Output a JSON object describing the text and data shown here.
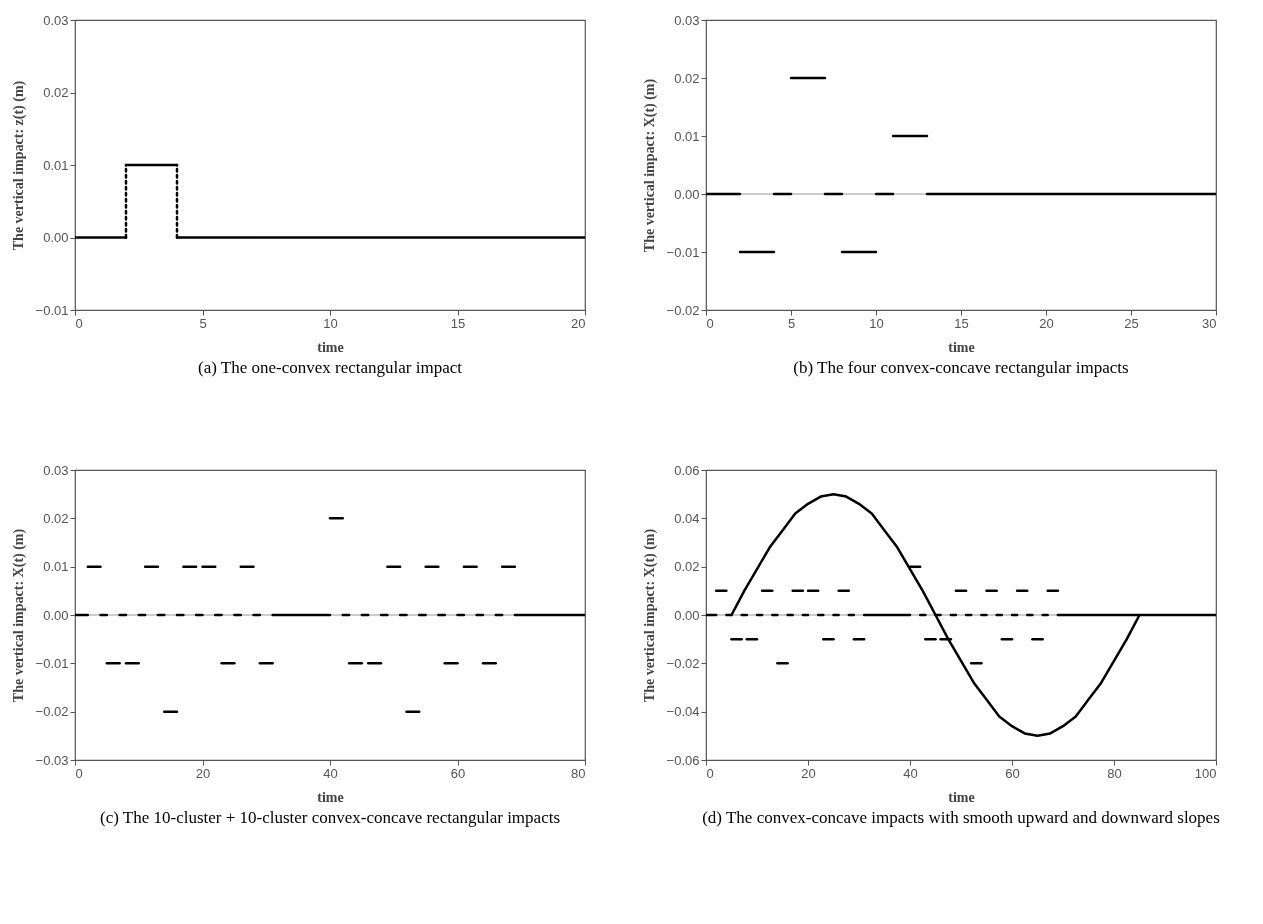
{
  "chart_data": [
    {
      "type": "line",
      "title": "(a) The one-convex rectangular impact",
      "xlabel": "time",
      "ylabel": "The vertical impact: z(t)    (m)",
      "xlim": [
        0,
        20
      ],
      "xticks": [
        0,
        5,
        10,
        15,
        20
      ],
      "ylim": [
        -0.01,
        0.03
      ],
      "yticks": [
        {
          "value": -0.01,
          "label": "−0.01"
        },
        {
          "value": 0,
          "label": "0.00"
        },
        {
          "value": 0.01,
          "label": "0.01"
        },
        {
          "value": 0.02,
          "label": "0.02"
        },
        {
          "value": 0.03,
          "label": "0.03"
        }
      ],
      "series": [
        {
          "color": "#000000",
          "x": [
            0,
            2
          ],
          "values": [
            0,
            0
          ]
        },
        {
          "color": "#000000",
          "x": [
            2,
            4
          ],
          "values": [
            0.01,
            0.01
          ]
        },
        {
          "color": "#000000",
          "x": [
            4,
            20
          ],
          "values": [
            0,
            0
          ]
        },
        {
          "color": "#000000",
          "line_style": "dotted",
          "x": [
            2,
            2
          ],
          "values": [
            0,
            0.01
          ]
        },
        {
          "color": "#000000",
          "line_style": "dotted",
          "x": [
            4,
            4
          ],
          "values": [
            0,
            0.01
          ]
        }
      ]
    },
    {
      "type": "line",
      "title": "(b) The four convex-concave rectangular impacts",
      "xlabel": "time",
      "ylabel": "The vertical  impact: X(t)   (m)",
      "xlim": [
        0,
        30
      ],
      "xticks": [
        0,
        5,
        10,
        15,
        20,
        25,
        30
      ],
      "ylim": [
        -0.02,
        0.03
      ],
      "yticks": [
        {
          "value": -0.02,
          "label": "−0.02"
        },
        {
          "value": -0.01,
          "label": "−0.01"
        },
        {
          "value": 0,
          "label": "0.00"
        },
        {
          "value": 0.01,
          "label": "0.01"
        },
        {
          "value": 0.02,
          "label": "0.02"
        },
        {
          "value": 0.03,
          "label": "0.03"
        }
      ],
      "ref_lines": [
        {
          "axis": "y",
          "value": 0,
          "color": "#999999"
        }
      ],
      "series": [
        {
          "color": "#000000",
          "x": [
            0,
            2
          ],
          "values": [
            0,
            0
          ]
        },
        {
          "color": "#000000",
          "x": [
            2,
            4
          ],
          "values": [
            -0.01,
            -0.01
          ]
        },
        {
          "color": "#000000",
          "x": [
            4,
            5
          ],
          "values": [
            0,
            0
          ]
        },
        {
          "color": "#000000",
          "x": [
            5,
            7
          ],
          "values": [
            0.02,
            0.02
          ]
        },
        {
          "color": "#000000",
          "x": [
            7,
            8
          ],
          "values": [
            0,
            0
          ]
        },
        {
          "color": "#000000",
          "x": [
            8,
            10
          ],
          "values": [
            -0.01,
            -0.01
          ]
        },
        {
          "color": "#000000",
          "x": [
            10,
            11
          ],
          "values": [
            0,
            0
          ]
        },
        {
          "color": "#000000",
          "x": [
            11,
            13
          ],
          "values": [
            0.01,
            0.01
          ]
        },
        {
          "color": "#000000",
          "x": [
            13,
            30
          ],
          "values": [
            0,
            0
          ]
        }
      ]
    },
    {
      "type": "line",
      "title": "(c) The 10-cluster + 10-cluster convex-concave rectangular impacts",
      "xlabel": "time",
      "ylabel": "The vertical impact:  X(t)    (m)",
      "xlim": [
        0,
        80
      ],
      "xticks": [
        0,
        20,
        40,
        60,
        80
      ],
      "ylim": [
        -0.03,
        0.03
      ],
      "yticks": [
        {
          "value": -0.03,
          "label": "−0.03"
        },
        {
          "value": -0.02,
          "label": "−0.02"
        },
        {
          "value": -0.01,
          "label": "−0.01"
        },
        {
          "value": 0,
          "label": "0.00"
        },
        {
          "value": 0.01,
          "label": "0.01"
        },
        {
          "value": 0.02,
          "label": "0.02"
        },
        {
          "value": 0.03,
          "label": "0.03"
        }
      ],
      "ref_lines": [
        {
          "axis": "y",
          "value": 0,
          "color": "#999999"
        }
      ],
      "series": [
        {
          "color": "#000000",
          "x": [
            0,
            2
          ],
          "values": [
            0,
            0
          ]
        },
        {
          "color": "#000000",
          "x": [
            2,
            4
          ],
          "values": [
            0.01,
            0.01
          ]
        },
        {
          "color": "#000000",
          "x": [
            4,
            5
          ],
          "values": [
            0,
            0
          ]
        },
        {
          "color": "#000000",
          "x": [
            5,
            7
          ],
          "values": [
            -0.01,
            -0.01
          ]
        },
        {
          "color": "#000000",
          "x": [
            7,
            8
          ],
          "values": [
            0,
            0
          ]
        },
        {
          "color": "#000000",
          "x": [
            8,
            10
          ],
          "values": [
            -0.01,
            -0.01
          ]
        },
        {
          "color": "#000000",
          "x": [
            10,
            11
          ],
          "values": [
            0,
            0
          ]
        },
        {
          "color": "#000000",
          "x": [
            11,
            13
          ],
          "values": [
            0.01,
            0.01
          ]
        },
        {
          "color": "#000000",
          "x": [
            13,
            14
          ],
          "values": [
            0,
            0
          ]
        },
        {
          "color": "#000000",
          "x": [
            14,
            16
          ],
          "values": [
            -0.02,
            -0.02
          ]
        },
        {
          "color": "#000000",
          "x": [
            16,
            17
          ],
          "values": [
            0,
            0
          ]
        },
        {
          "color": "#000000",
          "x": [
            17,
            19
          ],
          "values": [
            0.01,
            0.01
          ]
        },
        {
          "color": "#000000",
          "x": [
            19,
            20
          ],
          "values": [
            0,
            0
          ]
        },
        {
          "color": "#000000",
          "x": [
            20,
            22
          ],
          "values": [
            0.01,
            0.01
          ]
        },
        {
          "color": "#000000",
          "x": [
            22,
            23
          ],
          "values": [
            0,
            0
          ]
        },
        {
          "color": "#000000",
          "x": [
            23,
            25
          ],
          "values": [
            -0.01,
            -0.01
          ]
        },
        {
          "color": "#000000",
          "x": [
            25,
            26
          ],
          "values": [
            0,
            0
          ]
        },
        {
          "color": "#000000",
          "x": [
            26,
            28
          ],
          "values": [
            0.01,
            0.01
          ]
        },
        {
          "color": "#000000",
          "x": [
            28,
            29
          ],
          "values": [
            0,
            0
          ]
        },
        {
          "color": "#000000",
          "x": [
            29,
            31
          ],
          "values": [
            -0.01,
            -0.01
          ]
        },
        {
          "color": "#000000",
          "x": [
            31,
            40
          ],
          "values": [
            0,
            0
          ]
        },
        {
          "color": "#000000",
          "x": [
            40,
            42
          ],
          "values": [
            0.02,
            0.02
          ]
        },
        {
          "color": "#000000",
          "x": [
            42,
            43
          ],
          "values": [
            0,
            0
          ]
        },
        {
          "color": "#000000",
          "x": [
            43,
            45
          ],
          "values": [
            -0.01,
            -0.01
          ]
        },
        {
          "color": "#000000",
          "x": [
            45,
            46
          ],
          "values": [
            0,
            0
          ]
        },
        {
          "color": "#000000",
          "x": [
            46,
            48
          ],
          "values": [
            -0.01,
            -0.01
          ]
        },
        {
          "color": "#000000",
          "x": [
            48,
            49
          ],
          "values": [
            0,
            0
          ]
        },
        {
          "color": "#000000",
          "x": [
            49,
            51
          ],
          "values": [
            0.01,
            0.01
          ]
        },
        {
          "color": "#000000",
          "x": [
            51,
            52
          ],
          "values": [
            0,
            0
          ]
        },
        {
          "color": "#000000",
          "x": [
            52,
            54
          ],
          "values": [
            -0.02,
            -0.02
          ]
        },
        {
          "color": "#000000",
          "x": [
            54,
            55
          ],
          "values": [
            0,
            0
          ]
        },
        {
          "color": "#000000",
          "x": [
            55,
            57
          ],
          "values": [
            0.01,
            0.01
          ]
        },
        {
          "color": "#000000",
          "x": [
            57,
            58
          ],
          "values": [
            0,
            0
          ]
        },
        {
          "color": "#000000",
          "x": [
            58,
            60
          ],
          "values": [
            -0.01,
            -0.01
          ]
        },
        {
          "color": "#000000",
          "x": [
            60,
            61
          ],
          "values": [
            0,
            0
          ]
        },
        {
          "color": "#000000",
          "x": [
            61,
            63
          ],
          "values": [
            0.01,
            0.01
          ]
        },
        {
          "color": "#000000",
          "x": [
            63,
            64
          ],
          "values": [
            0,
            0
          ]
        },
        {
          "color": "#000000",
          "x": [
            64,
            66
          ],
          "values": [
            -0.01,
            -0.01
          ]
        },
        {
          "color": "#000000",
          "x": [
            66,
            67
          ],
          "values": [
            0,
            0
          ]
        },
        {
          "color": "#000000",
          "x": [
            67,
            69
          ],
          "values": [
            0.01,
            0.01
          ]
        },
        {
          "color": "#000000",
          "x": [
            69,
            80
          ],
          "values": [
            0,
            0
          ]
        }
      ]
    },
    {
      "type": "line",
      "title": "(d) The convex-concave impacts with smooth upward and downward slopes",
      "xlabel": "time",
      "ylabel": "The vertical impact:  X(t)    (m)",
      "xlim": [
        0,
        100
      ],
      "xticks": [
        0,
        20,
        40,
        60,
        80,
        100
      ],
      "ylim": [
        -0.06,
        0.06
      ],
      "yticks": [
        {
          "value": -0.06,
          "label": "−0.06"
        },
        {
          "value": -0.04,
          "label": "−0.04"
        },
        {
          "value": -0.02,
          "label": "−0.02"
        },
        {
          "value": 0,
          "label": "0.00"
        },
        {
          "value": 0.02,
          "label": "0.02"
        },
        {
          "value": 0.04,
          "label": "0.04"
        },
        {
          "value": 0.06,
          "label": "0.06"
        }
      ],
      "ref_lines": [
        {
          "axis": "y",
          "value": 0,
          "color": "#999999"
        }
      ],
      "series": [
        {
          "color": "#000000",
          "x": [
            0,
            2
          ],
          "values": [
            0,
            0
          ]
        },
        {
          "color": "#000000",
          "x": [
            2,
            4
          ],
          "values": [
            0.01,
            0.01
          ]
        },
        {
          "color": "#000000",
          "x": [
            4,
            5
          ],
          "values": [
            0,
            0
          ]
        },
        {
          "color": "#000000",
          "x": [
            5,
            7
          ],
          "values": [
            -0.01,
            -0.01
          ]
        },
        {
          "color": "#000000",
          "x": [
            7,
            8
          ],
          "values": [
            0,
            0
          ]
        },
        {
          "color": "#000000",
          "x": [
            8,
            10
          ],
          "values": [
            -0.01,
            -0.01
          ]
        },
        {
          "color": "#000000",
          "x": [
            10,
            11
          ],
          "values": [
            0,
            0
          ]
        },
        {
          "color": "#000000",
          "x": [
            11,
            13
          ],
          "values": [
            0.01,
            0.01
          ]
        },
        {
          "color": "#000000",
          "x": [
            13,
            14
          ],
          "values": [
            0,
            0
          ]
        },
        {
          "color": "#000000",
          "x": [
            14,
            16
          ],
          "values": [
            -0.02,
            -0.02
          ]
        },
        {
          "color": "#000000",
          "x": [
            16,
            17
          ],
          "values": [
            0,
            0
          ]
        },
        {
          "color": "#000000",
          "x": [
            17,
            19
          ],
          "values": [
            0.01,
            0.01
          ]
        },
        {
          "color": "#000000",
          "x": [
            19,
            20
          ],
          "values": [
            0,
            0
          ]
        },
        {
          "color": "#000000",
          "x": [
            20,
            22
          ],
          "values": [
            0.01,
            0.01
          ]
        },
        {
          "color": "#000000",
          "x": [
            22,
            23
          ],
          "values": [
            0,
            0
          ]
        },
        {
          "color": "#000000",
          "x": [
            23,
            25
          ],
          "values": [
            -0.01,
            -0.01
          ]
        },
        {
          "color": "#000000",
          "x": [
            25,
            26
          ],
          "values": [
            0,
            0
          ]
        },
        {
          "color": "#000000",
          "x": [
            26,
            28
          ],
          "values": [
            0.01,
            0.01
          ]
        },
        {
          "color": "#000000",
          "x": [
            28,
            29
          ],
          "values": [
            0,
            0
          ]
        },
        {
          "color": "#000000",
          "x": [
            29,
            31
          ],
          "values": [
            -0.01,
            -0.01
          ]
        },
        {
          "color": "#000000",
          "x": [
            31,
            40
          ],
          "values": [
            0,
            0
          ]
        },
        {
          "color": "#000000",
          "x": [
            40,
            42
          ],
          "values": [
            0.02,
            0.02
          ]
        },
        {
          "color": "#000000",
          "x": [
            42,
            43
          ],
          "values": [
            0,
            0
          ]
        },
        {
          "color": "#000000",
          "x": [
            43,
            45
          ],
          "values": [
            -0.01,
            -0.01
          ]
        },
        {
          "color": "#000000",
          "x": [
            45,
            46
          ],
          "values": [
            0,
            0
          ]
        },
        {
          "color": "#000000",
          "x": [
            46,
            48
          ],
          "values": [
            -0.01,
            -0.01
          ]
        },
        {
          "color": "#000000",
          "x": [
            48,
            49
          ],
          "values": [
            0,
            0
          ]
        },
        {
          "color": "#000000",
          "x": [
            49,
            51
          ],
          "values": [
            0.01,
            0.01
          ]
        },
        {
          "color": "#000000",
          "x": [
            51,
            52
          ],
          "values": [
            0,
            0
          ]
        },
        {
          "color": "#000000",
          "x": [
            52,
            54
          ],
          "values": [
            -0.02,
            -0.02
          ]
        },
        {
          "color": "#000000",
          "x": [
            54,
            55
          ],
          "values": [
            0,
            0
          ]
        },
        {
          "color": "#000000",
          "x": [
            55,
            57
          ],
          "values": [
            0.01,
            0.01
          ]
        },
        {
          "color": "#000000",
          "x": [
            57,
            58
          ],
          "values": [
            0,
            0
          ]
        },
        {
          "color": "#000000",
          "x": [
            58,
            60
          ],
          "values": [
            -0.01,
            -0.01
          ]
        },
        {
          "color": "#000000",
          "x": [
            60,
            61
          ],
          "values": [
            0,
            0
          ]
        },
        {
          "color": "#000000",
          "x": [
            61,
            63
          ],
          "values": [
            0.01,
            0.01
          ]
        },
        {
          "color": "#000000",
          "x": [
            63,
            64
          ],
          "values": [
            0,
            0
          ]
        },
        {
          "color": "#000000",
          "x": [
            64,
            66
          ],
          "values": [
            -0.01,
            -0.01
          ]
        },
        {
          "color": "#000000",
          "x": [
            66,
            67
          ],
          "values": [
            0,
            0
          ]
        },
        {
          "color": "#000000",
          "x": [
            67,
            69
          ],
          "values": [
            0.01,
            0.01
          ]
        },
        {
          "color": "#000000",
          "x": [
            69,
            100
          ],
          "values": [
            0,
            0
          ]
        },
        {
          "color": "#000000",
          "x": [
            5,
            7.5,
            10,
            12.5,
            15,
            17.5,
            20,
            22.5,
            25,
            27.5,
            30,
            32.5,
            35,
            37.5,
            40,
            42.5,
            45,
            47.5,
            50,
            52.5,
            55,
            57.5,
            60,
            62.5,
            65,
            67.5,
            70,
            72.5,
            75,
            77.5,
            80,
            82.5,
            85
          ],
          "values": [
            0,
            0.01,
            0.019,
            0.028,
            0.035,
            0.042,
            0.046,
            0.049,
            0.05,
            0.049,
            0.046,
            0.042,
            0.035,
            0.028,
            0.019,
            0.01,
            0,
            -0.01,
            -0.019,
            -0.028,
            -0.035,
            -0.042,
            -0.046,
            -0.049,
            -0.05,
            -0.049,
            -0.046,
            -0.042,
            -0.035,
            -0.028,
            -0.019,
            -0.01,
            0
          ]
        }
      ]
    }
  ]
}
